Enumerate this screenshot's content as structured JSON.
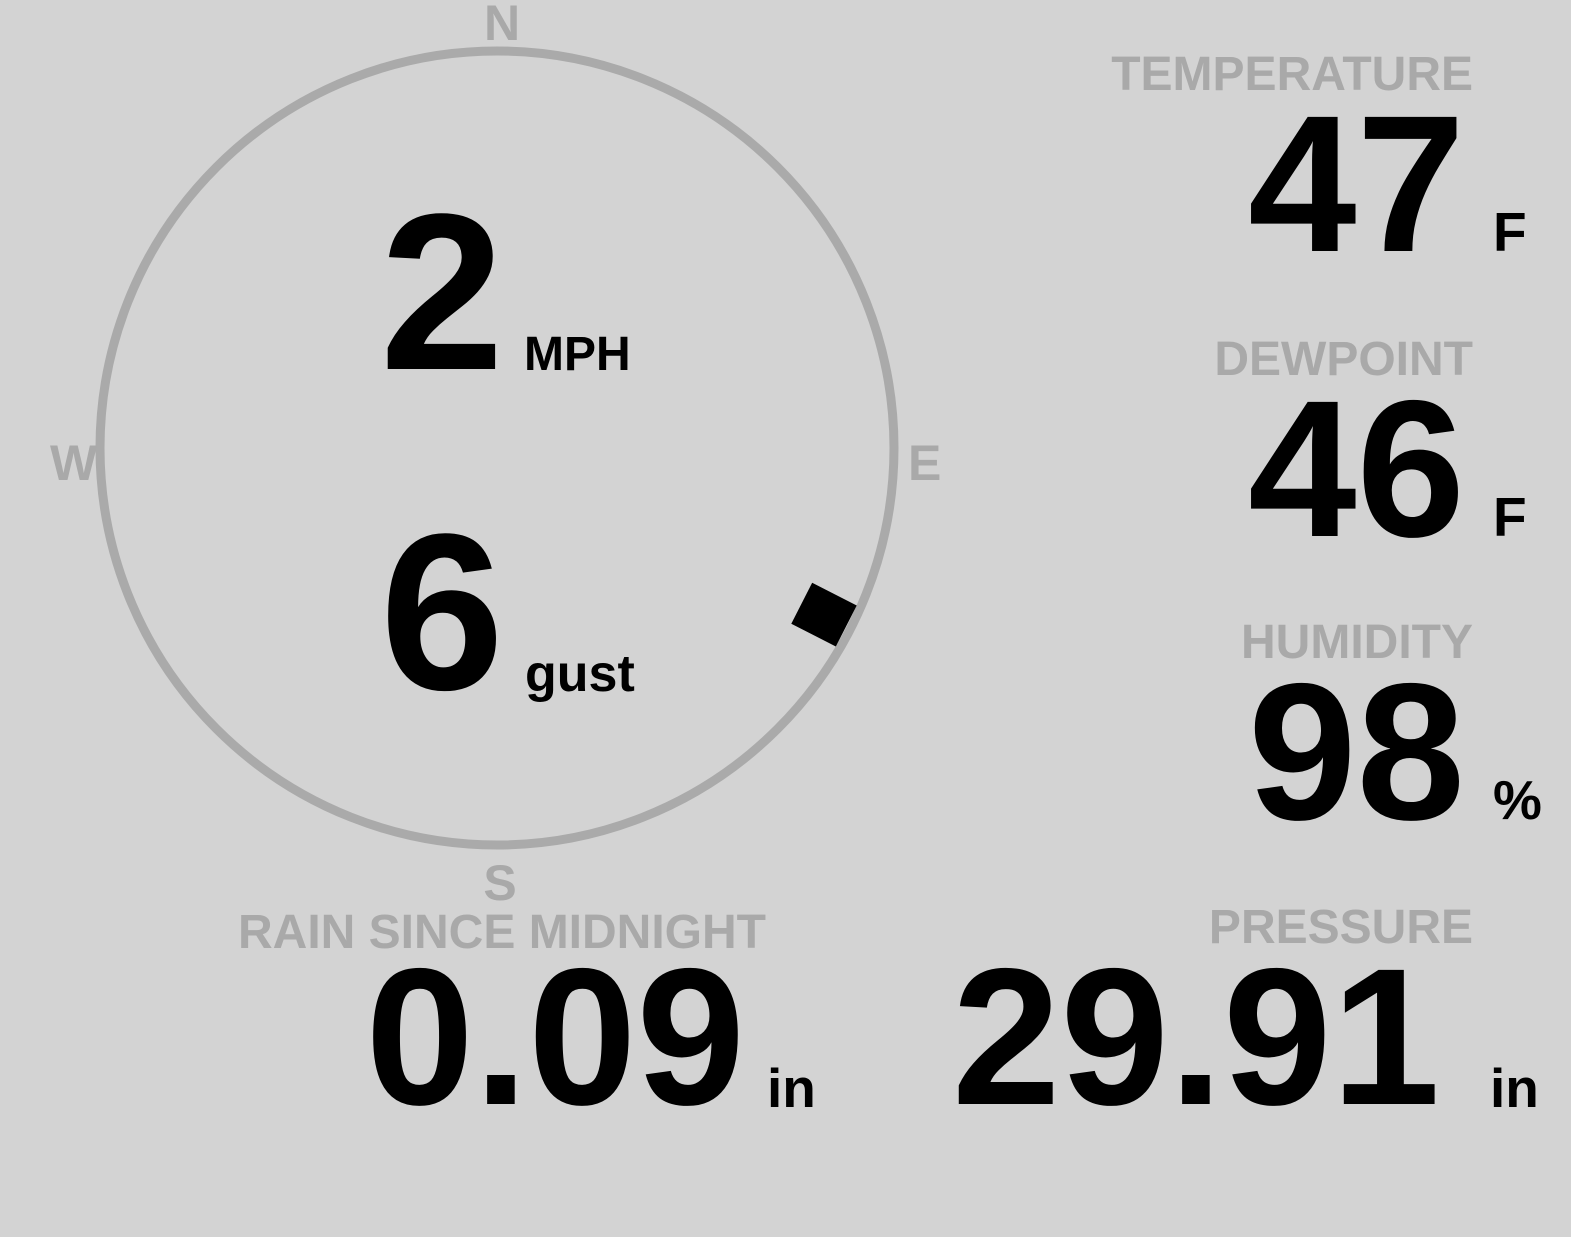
{
  "colors": {
    "background": "#d3d3d3",
    "label": "#a9a9a9",
    "value": "#000000",
    "compass_ring": "#aaaaaa"
  },
  "wind": {
    "speed": "2",
    "speed_unit": "MPH",
    "gust": "6",
    "gust_unit": "gust",
    "direction_degrees": 117,
    "compass": {
      "n": "N",
      "e": "E",
      "s": "S",
      "w": "W"
    }
  },
  "temperature": {
    "label": "TEMPERATURE",
    "value": "47",
    "unit": "F"
  },
  "dewpoint": {
    "label": "DEWPOINT",
    "value": "46",
    "unit": "F"
  },
  "humidity": {
    "label": "HUMIDITY",
    "value": "98",
    "unit": "%"
  },
  "pressure": {
    "label": "PRESSURE",
    "value": "29.91",
    "unit": "in"
  },
  "rain": {
    "label": "RAIN SINCE MIDNIGHT",
    "value": "0.09",
    "unit": "in"
  }
}
